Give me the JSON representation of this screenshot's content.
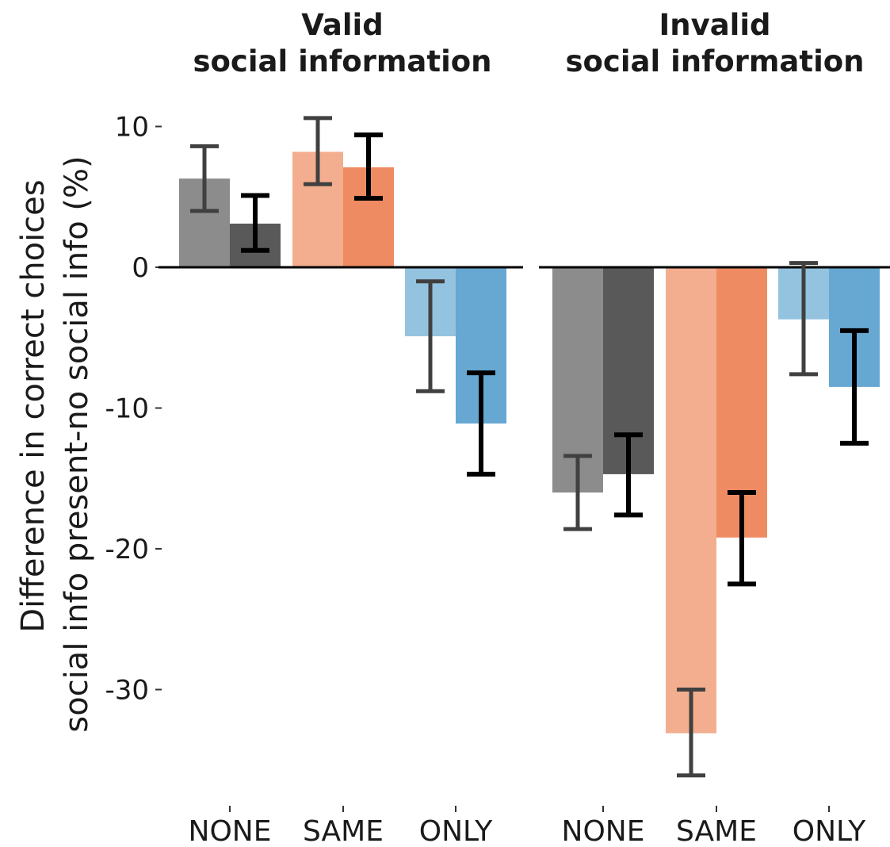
{
  "chart_data": {
    "type": "bar",
    "ylabel": [
      "Difference in correct choices",
      "social info present-no social info (%)"
    ],
    "ylim": [
      -38,
      12
    ],
    "yticks": [
      10,
      0,
      -10,
      -20,
      -30
    ],
    "ytick_labels": [
      "10",
      "0",
      "-10",
      "-20",
      "-30"
    ],
    "grid": false,
    "legend": "none",
    "categories": [
      "NONE",
      "SAME",
      "ONLY"
    ],
    "panels": [
      {
        "title": [
          "Valid",
          "social information"
        ],
        "groups": [
          {
            "category": "NONE",
            "bars": [
              {
                "value": 6.3,
                "err_low": 4.0,
                "err_high": 8.6,
                "color": "#8c8c8c"
              },
              {
                "value": 3.1,
                "err_low": 1.2,
                "err_high": 5.1,
                "color": "#595959"
              }
            ]
          },
          {
            "category": "SAME",
            "bars": [
              {
                "value": 8.2,
                "err_low": 5.9,
                "err_high": 10.6,
                "color": "#f3ae8f"
              },
              {
                "value": 7.1,
                "err_low": 4.9,
                "err_high": 9.4,
                "color": "#ee8b62"
              }
            ]
          },
          {
            "category": "ONLY",
            "bars": [
              {
                "value": -4.9,
                "err_low": -8.8,
                "err_high": -1.0,
                "color": "#93c3df"
              },
              {
                "value": -11.1,
                "err_low": -14.7,
                "err_high": -7.5,
                "color": "#66a8d2"
              }
            ]
          }
        ]
      },
      {
        "title": [
          "Invalid",
          "social information"
        ],
        "groups": [
          {
            "category": "NONE",
            "bars": [
              {
                "value": -16.0,
                "err_low": -18.6,
                "err_high": -13.4,
                "color": "#8c8c8c"
              },
              {
                "value": -14.7,
                "err_low": -17.6,
                "err_high": -11.9,
                "color": "#595959"
              }
            ]
          },
          {
            "category": "SAME",
            "bars": [
              {
                "value": -33.1,
                "err_low": -36.1,
                "err_high": -30.0,
                "color": "#f3ae8f"
              },
              {
                "value": -19.2,
                "err_low": -22.5,
                "err_high": -16.0,
                "color": "#ee8b62"
              }
            ]
          },
          {
            "category": "ONLY",
            "bars": [
              {
                "value": -3.7,
                "err_low": -7.6,
                "err_high": 0.3,
                "color": "#93c3df"
              },
              {
                "value": -8.5,
                "err_low": -12.5,
                "err_high": -4.5,
                "color": "#66a8d2"
              }
            ]
          }
        ]
      }
    ]
  }
}
